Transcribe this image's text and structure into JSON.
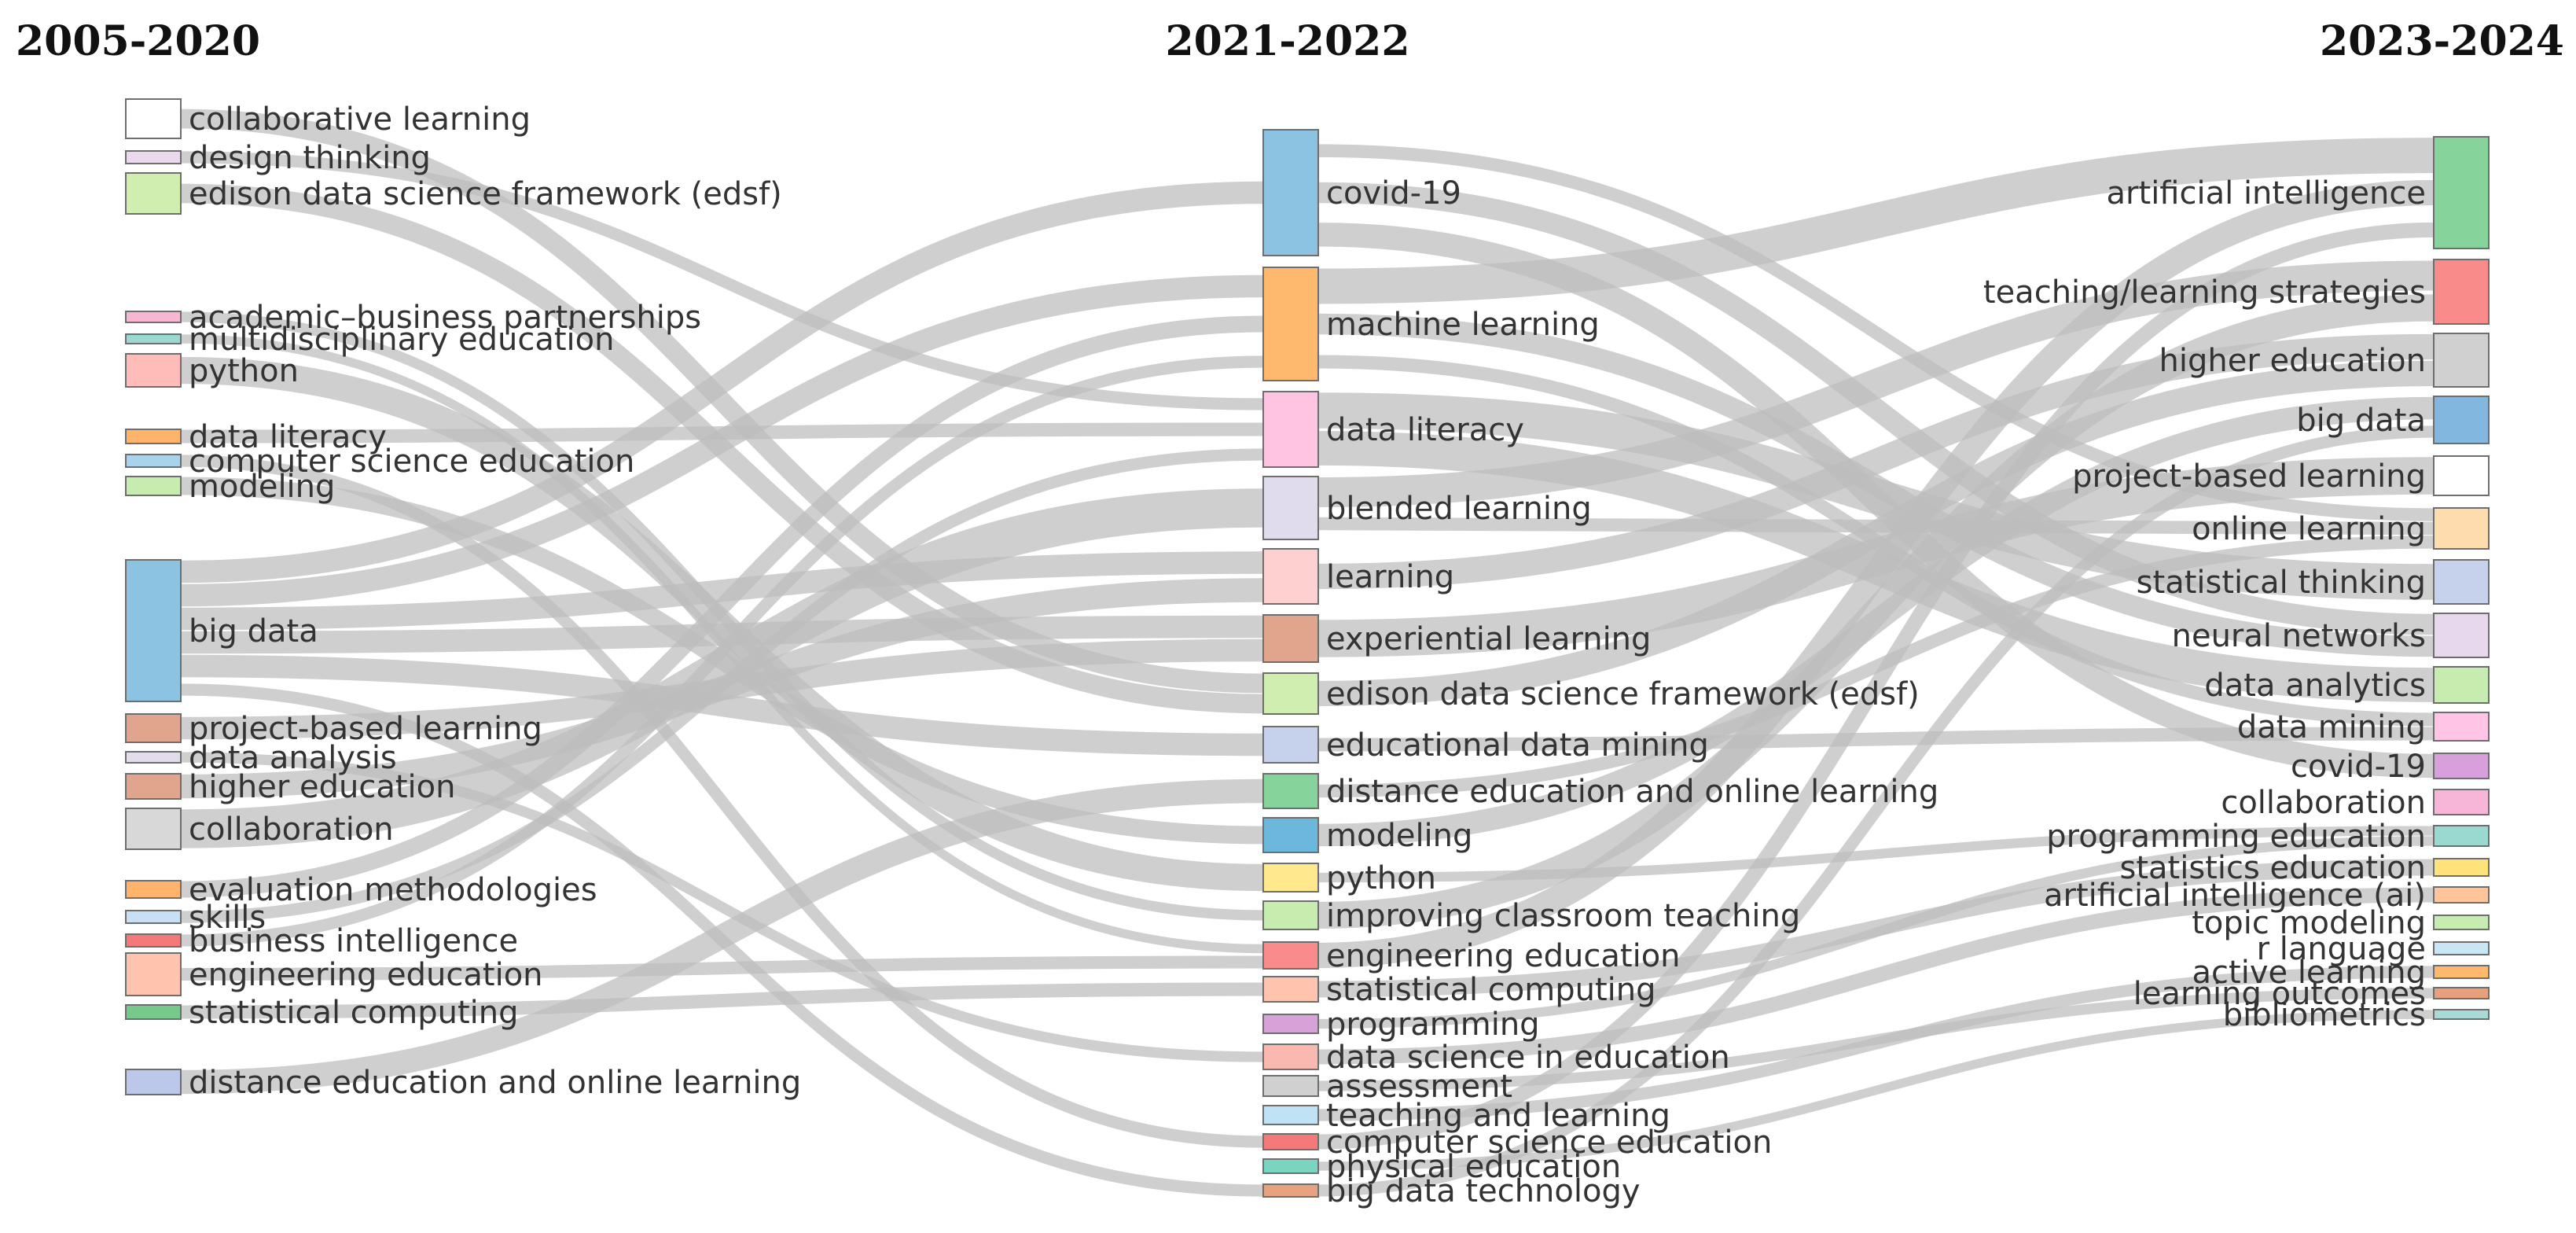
{
  "periods": [
    "2005-2020",
    "2021-2022",
    "2023-2024"
  ],
  "columns": [
    {
      "period": "2005-2020",
      "nodes": [
        {
          "label": "collaborative learning",
          "color": "#ffffff"
        },
        {
          "label": "design thinking",
          "color": "#ead8ee"
        },
        {
          "label": "edison data science framework (edsf)",
          "color": "#cfeeb0"
        },
        {
          "label": "academic–business partnerships",
          "color": "#f7b6d2"
        },
        {
          "label": "multidisciplinary education",
          "color": "#9ad9d0"
        },
        {
          "label": "python",
          "color": "#ffbcb8"
        },
        {
          "label": "data literacy",
          "color": "#ffb36b"
        },
        {
          "label": "computer science education",
          "color": "#a8d3ec"
        },
        {
          "label": "modeling",
          "color": "#c7ecb0"
        },
        {
          "label": "big data",
          "color": "#8cc2e2"
        },
        {
          "label": "project-based learning",
          "color": "#e1a58d"
        },
        {
          "label": "data analysis",
          "color": "#e3dcec"
        },
        {
          "label": "higher education",
          "color": "#e1a58d"
        },
        {
          "label": "collaboration",
          "color": "#d8d8d8"
        },
        {
          "label": "evaluation methodologies",
          "color": "#ffb36b"
        },
        {
          "label": "skills",
          "color": "#c9e0f4"
        },
        {
          "label": "business intelligence",
          "color": "#f47a7a"
        },
        {
          "label": "engineering education",
          "color": "#ffc4ad"
        },
        {
          "label": "statistical computing",
          "color": "#76c98a"
        },
        {
          "label": "distance education and online learning",
          "color": "#bcc8ea"
        }
      ]
    },
    {
      "period": "2021-2022",
      "nodes": [
        {
          "label": "covid-19",
          "color": "#8cc2e2"
        },
        {
          "label": "machine learning",
          "color": "#ffb96e"
        },
        {
          "label": "data literacy",
          "color": "#ffc4e2"
        },
        {
          "label": "blended learning",
          "color": "#e0dcee"
        },
        {
          "label": "learning",
          "color": "#ffd0d0"
        },
        {
          "label": "experiential learning",
          "color": "#e1a58d"
        },
        {
          "label": "edison data science framework (edsf)",
          "color": "#cfeeb0"
        },
        {
          "label": "educational data mining",
          "color": "#c6d2ec"
        },
        {
          "label": "distance education and online learning",
          "color": "#86d49c"
        },
        {
          "label": "modeling",
          "color": "#6cb8dc"
        },
        {
          "label": "python",
          "color": "#ffe98c"
        },
        {
          "label": "improving classroom teaching",
          "color": "#c7ecb0"
        },
        {
          "label": "engineering education",
          "color": "#f98b8b"
        },
        {
          "label": "statistical computing",
          "color": "#ffc4ad"
        },
        {
          "label": "programming",
          "color": "#d6a2d8"
        },
        {
          "label": "data science in education",
          "color": "#f9b8b0"
        },
        {
          "label": "assessment",
          "color": "#d0d0d0"
        },
        {
          "label": "teaching and learning",
          "color": "#bfe3f4"
        },
        {
          "label": "computer science education",
          "color": "#f47a7a"
        },
        {
          "label": "physical education",
          "color": "#79d4c0"
        },
        {
          "label": "big data technology",
          "color": "#e6a37e"
        }
      ]
    },
    {
      "period": "2023-2024",
      "nodes": [
        {
          "label": "artificial intelligence",
          "color": "#86d49c"
        },
        {
          "label": "teaching/learning strategies",
          "color": "#f98b8b"
        },
        {
          "label": "higher education",
          "color": "#d0d0d0"
        },
        {
          "label": "big data",
          "color": "#82b8e0"
        },
        {
          "label": "project-based learning",
          "color": "#ffffff"
        },
        {
          "label": "online learning",
          "color": "#ffdcae"
        },
        {
          "label": "statistical thinking",
          "color": "#c6d2ec"
        },
        {
          "label": "neural networks",
          "color": "#e8d8ee"
        },
        {
          "label": "data analytics",
          "color": "#c7ecb0"
        },
        {
          "label": "data mining",
          "color": "#ffc4e6"
        },
        {
          "label": "covid-19",
          "color": "#d8a0da"
        },
        {
          "label": "collaboration",
          "color": "#f7b6d8"
        },
        {
          "label": "programming education",
          "color": "#9ad9d0"
        },
        {
          "label": "statistics education",
          "color": "#ffe27a"
        },
        {
          "label": "artificial intelligence (ai)",
          "color": "#ffc49a"
        },
        {
          "label": "topic modeling",
          "color": "#c7ecb0"
        },
        {
          "label": "r language",
          "color": "#c9e6f4"
        },
        {
          "label": "active learning",
          "color": "#ffb96e"
        },
        {
          "label": "learning outcomes",
          "color": "#e8a07c"
        },
        {
          "label": "bibliometrics",
          "color": "#a8dad8"
        }
      ]
    }
  ],
  "flows": [
    {
      "source": "2005-2020:collaborative learning",
      "target": "2021-2022:edison data science framework (edsf)"
    },
    {
      "source": "2005-2020:design thinking",
      "target": "2021-2022:data literacy"
    },
    {
      "source": "2005-2020:edison data science framework (edsf)",
      "target": "2021-2022:edison data science framework (edsf)"
    },
    {
      "source": "2005-2020:academic–business partnerships",
      "target": "2021-2022:improving classroom teaching"
    },
    {
      "source": "2005-2020:multidisciplinary education",
      "target": "2021-2022:engineering education"
    },
    {
      "source": "2005-2020:python",
      "target": "2021-2022:python"
    },
    {
      "source": "2005-2020:data literacy",
      "target": "2021-2022:data literacy"
    },
    {
      "source": "2005-2020:computer science education",
      "target": "2021-2022:computer science education"
    },
    {
      "source": "2005-2020:modeling",
      "target": "2021-2022:modeling"
    },
    {
      "source": "2005-2020:big data",
      "target": "2021-2022:covid-19"
    },
    {
      "source": "2005-2020:big data",
      "target": "2021-2022:machine learning"
    },
    {
      "source": "2005-2020:big data",
      "target": "2021-2022:learning"
    },
    {
      "source": "2005-2020:big data",
      "target": "2021-2022:experiential learning"
    },
    {
      "source": "2005-2020:big data",
      "target": "2021-2022:educational data mining"
    },
    {
      "source": "2005-2020:big data",
      "target": "2021-2022:big data technology"
    },
    {
      "source": "2005-2020:project-based learning",
      "target": "2021-2022:experiential learning"
    },
    {
      "source": "2005-2020:data analysis",
      "target": "2021-2022:data science in education"
    },
    {
      "source": "2005-2020:higher education",
      "target": "2021-2022:learning"
    },
    {
      "source": "2005-2020:collaboration",
      "target": "2021-2022:blended learning"
    },
    {
      "source": "2005-2020:evaluation methodologies",
      "target": "2021-2022:machine learning"
    },
    {
      "source": "2005-2020:skills",
      "target": "2021-2022:data literacy"
    },
    {
      "source": "2005-2020:business intelligence",
      "target": "2021-2022:machine learning"
    },
    {
      "source": "2005-2020:engineering education",
      "target": "2021-2022:engineering education"
    },
    {
      "source": "2005-2020:statistical computing",
      "target": "2021-2022:statistical computing"
    },
    {
      "source": "2005-2020:distance education and online learning",
      "target": "2021-2022:distance education and online learning"
    },
    {
      "source": "2021-2022:covid-19",
      "target": "2023-2024:online learning"
    },
    {
      "source": "2021-2022:covid-19",
      "target": "2023-2024:neural networks"
    },
    {
      "source": "2021-2022:covid-19",
      "target": "2023-2024:covid-19"
    },
    {
      "source": "2021-2022:machine learning",
      "target": "2023-2024:artificial intelligence"
    },
    {
      "source": "2021-2022:machine learning",
      "target": "2023-2024:neural networks"
    },
    {
      "source": "2021-2022:machine learning",
      "target": "2023-2024:data mining"
    },
    {
      "source": "2021-2022:data literacy",
      "target": "2023-2024:statistical thinking"
    },
    {
      "source": "2021-2022:data literacy",
      "target": "2023-2024:data analytics"
    },
    {
      "source": "2021-2022:blended learning",
      "target": "2023-2024:teaching/learning strategies"
    },
    {
      "source": "2021-2022:blended learning",
      "target": "2023-2024:online learning"
    },
    {
      "source": "2021-2022:learning",
      "target": "2023-2024:higher education"
    },
    {
      "source": "2021-2022:experiential learning",
      "target": "2023-2024:project-based learning"
    },
    {
      "source": "2021-2022:edison data science framework (edsf)",
      "target": "2023-2024:higher education"
    },
    {
      "source": "2021-2022:educational data mining",
      "target": "2023-2024:data mining"
    },
    {
      "source": "2021-2022:distance education and online learning",
      "target": "2023-2024:online learning"
    },
    {
      "source": "2021-2022:modeling",
      "target": "2023-2024:big data"
    },
    {
      "source": "2021-2022:python",
      "target": "2023-2024:programming education"
    },
    {
      "source": "2021-2022:improving classroom teaching",
      "target": "2023-2024:teaching/learning strategies"
    },
    {
      "source": "2021-2022:engineering education",
      "target": "2023-2024:artificial intelligence"
    },
    {
      "source": "2021-2022:statistical computing",
      "target": "2023-2024:statistics education"
    },
    {
      "source": "2021-2022:programming",
      "target": "2023-2024:programming education"
    },
    {
      "source": "2021-2022:data science in education",
      "target": "2023-2024:artificial intelligence (ai)"
    },
    {
      "source": "2021-2022:assessment",
      "target": "2023-2024:learning outcomes"
    },
    {
      "source": "2021-2022:teaching and learning",
      "target": "2023-2024:active learning"
    },
    {
      "source": "2021-2022:computer science education",
      "target": "2023-2024:artificial intelligence"
    },
    {
      "source": "2021-2022:physical education",
      "target": "2023-2024:bibliometrics"
    },
    {
      "source": "2021-2022:big data technology",
      "target": "2023-2024:big data"
    }
  ],
  "colors": {
    "flow": "#bdbdbd",
    "node_border": "#6e6e6e"
  }
}
